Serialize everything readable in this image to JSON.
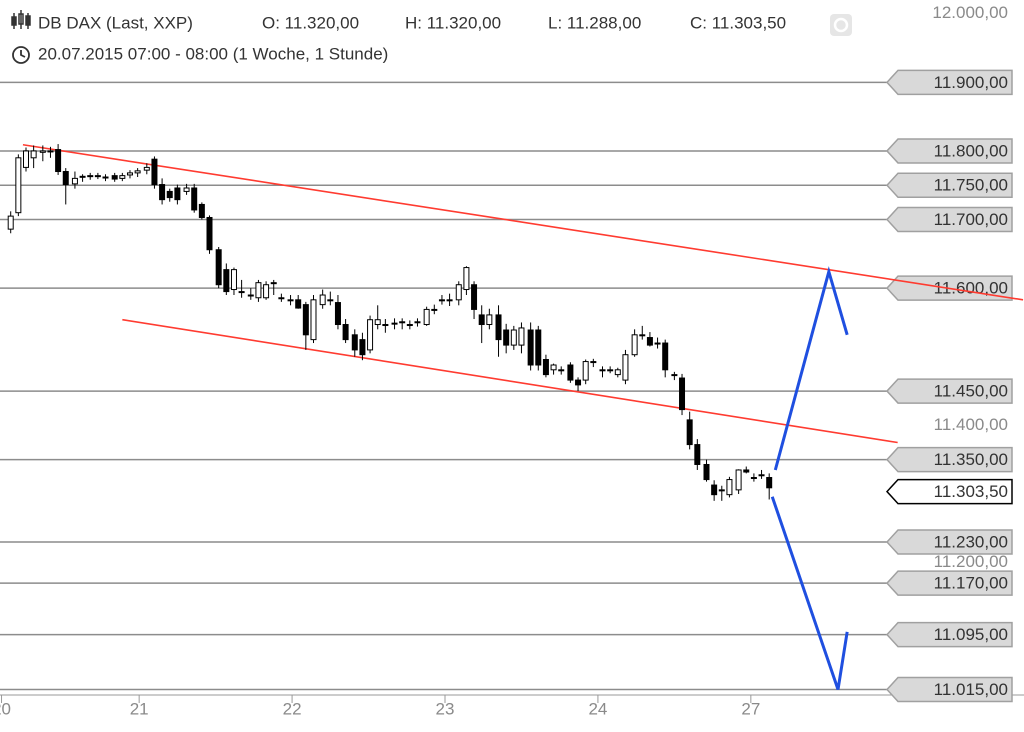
{
  "chart_data": {
    "type": "candlestick",
    "title": "DB DAX (Last, XXP)",
    "header": [
      "O: 11.320,00",
      "H: 11.320,00",
      "L: 11.288,00",
      "C: 11.303,50"
    ],
    "subtitle": "20.07.2015 07:00 - 08:00 (1 Woche, 1 Stunde)",
    "x": [
      0.16,
      0.21,
      0.26,
      0.31,
      0.37,
      0.42,
      0.47,
      0.52,
      0.58,
      0.63,
      0.68,
      0.73,
      0.78,
      0.84,
      0.89,
      0.94,
      0.99,
      1.05,
      1.1,
      1.15,
      1.2,
      1.25,
      1.31,
      1.36,
      1.41,
      1.46,
      1.52,
      1.57,
      1.62,
      1.67,
      1.73,
      1.78,
      1.83,
      1.88,
      1.93,
      1.99,
      2.04,
      2.09,
      2.14,
      2.2,
      2.25,
      2.3,
      2.35,
      2.41,
      2.46,
      2.51,
      2.56,
      2.61,
      2.67,
      2.72,
      2.77,
      2.82,
      2.88,
      2.93,
      2.98,
      3.03,
      3.09,
      3.14,
      3.19,
      3.24,
      3.29,
      3.35,
      3.4,
      3.45,
      3.5,
      3.56,
      3.61,
      3.66,
      3.71,
      3.76,
      3.82,
      3.87,
      3.92,
      3.97,
      4.03,
      4.08,
      4.13,
      4.18,
      4.24,
      4.29,
      4.34,
      4.39,
      4.44,
      4.5,
      4.55,
      4.6,
      4.65,
      4.71,
      4.76,
      4.81,
      4.86,
      4.92,
      4.97,
      5.02,
      5.07,
      5.12
    ],
    "open": [
      11686,
      11710,
      11776,
      11790,
      11798,
      11800,
      11802,
      11770,
      11752,
      11762,
      11763,
      11764,
      11762,
      11764,
      11760,
      11765,
      11768,
      11772,
      11788,
      11751,
      11741,
      11746,
      11741,
      11746,
      11722,
      11703,
      11656,
      11627,
      11598,
      11595,
      11590,
      11586,
      11586,
      11608,
      11586,
      11583,
      11583,
      11576,
      11525,
      11576,
      11583,
      11579,
      11547,
      11532,
      11525,
      11510,
      11547,
      11547,
      11548,
      11550,
      11547,
      11551,
      11547,
      11569,
      11583,
      11583,
      11583,
      11598,
      11605,
      11561,
      11547,
      11561,
      11539,
      11517,
      11517,
      11539,
      11539,
      11496,
      11481,
      11481,
      11488,
      11466,
      11466,
      11493,
      11481,
      11481,
      11474,
      11466,
      11503,
      11532,
      11528,
      11520,
      11520,
      11474,
      11469,
      11408,
      11372,
      11343,
      11313,
      11306,
      11299,
      11306,
      11335,
      11324,
      11328,
      11324
    ],
    "high": [
      11712,
      11795,
      11805,
      11808,
      11808,
      11806,
      11810,
      11775,
      11770,
      11766,
      11768,
      11768,
      11766,
      11768,
      11768,
      11772,
      11775,
      11782,
      11792,
      11760,
      11745,
      11751,
      11752,
      11752,
      11725,
      11706,
      11660,
      11636,
      11630,
      11612,
      11600,
      11612,
      11610,
      11612,
      11592,
      11590,
      11590,
      11580,
      11590,
      11598,
      11595,
      11590,
      11555,
      11540,
      11535,
      11560,
      11575,
      11555,
      11556,
      11556,
      11553,
      11556,
      11573,
      11576,
      11590,
      11592,
      11610,
      11632,
      11610,
      11575,
      11570,
      11575,
      11548,
      11545,
      11550,
      11550,
      11545,
      11503,
      11490,
      11486,
      11492,
      11470,
      11496,
      11497,
      11486,
      11486,
      11484,
      11510,
      11540,
      11545,
      11536,
      11528,
      11525,
      11478,
      11475,
      11420,
      11380,
      11350,
      11320,
      11312,
      11325,
      11336,
      11340,
      11330,
      11335,
      11330
    ],
    "low": [
      11680,
      11705,
      11770,
      11775,
      11785,
      11790,
      11765,
      11722,
      11745,
      11755,
      11758,
      11759,
      11756,
      11755,
      11756,
      11760,
      11762,
      11766,
      11745,
      11722,
      11726,
      11722,
      11736,
      11710,
      11700,
      11650,
      11600,
      11590,
      11590,
      11586,
      11583,
      11580,
      11583,
      11590,
      11580,
      11575,
      11570,
      11510,
      11520,
      11570,
      11575,
      11540,
      11520,
      11500,
      11495,
      11505,
      11540,
      11535,
      11540,
      11540,
      11540,
      11544,
      11545,
      11562,
      11576,
      11574,
      11575,
      11590,
      11555,
      11520,
      11540,
      11500,
      11505,
      11510,
      11505,
      11480,
      11480,
      11470,
      11474,
      11474,
      11462,
      11450,
      11460,
      11485,
      11470,
      11476,
      11470,
      11460,
      11500,
      11525,
      11515,
      11512,
      11470,
      11466,
      11415,
      11365,
      11335,
      11318,
      11290,
      11290,
      11295,
      11300,
      11330,
      11318,
      11322,
      11292
    ],
    "close": [
      11705,
      11790,
      11800,
      11800,
      11800,
      11799,
      11770,
      11751,
      11760,
      11763,
      11764,
      11764,
      11762,
      11759,
      11764,
      11768,
      11771,
      11776,
      11751,
      11729,
      11732,
      11729,
      11746,
      11714,
      11703,
      11656,
      11605,
      11595,
      11627,
      11595,
      11590,
      11608,
      11605,
      11608,
      11586,
      11583,
      11571,
      11532,
      11583,
      11590,
      11583,
      11547,
      11525,
      11510,
      11503,
      11554,
      11554,
      11547,
      11549,
      11551,
      11547,
      11551,
      11569,
      11569,
      11583,
      11583,
      11605,
      11630,
      11569,
      11547,
      11561,
      11525,
      11517,
      11539,
      11542,
      11488,
      11488,
      11474,
      11488,
      11481,
      11466,
      11459,
      11493,
      11493,
      11481,
      11481,
      11481,
      11503,
      11532,
      11532,
      11517,
      11520,
      11481,
      11474,
      11423,
      11372,
      11343,
      11321,
      11299,
      11306,
      11321,
      11335,
      11332,
      11324,
      11328,
      11309
    ],
    "up_color": "#ffffff",
    "down_color": "#000000",
    "xlim": [
      0.09,
      5.91
    ],
    "xticks": [
      {
        "value": 0.1,
        "label": "20"
      },
      {
        "value": 1,
        "label": "21"
      },
      {
        "value": 2,
        "label": "22"
      },
      {
        "value": 3,
        "label": "23"
      },
      {
        "value": 4,
        "label": "24"
      },
      {
        "value": 5,
        "label": "27"
      }
    ],
    "ylim": [
      11007,
      12020
    ],
    "yticks": [
      {
        "value": 12000,
        "label": "12.000,00"
      },
      {
        "value": 11400,
        "label": "11.400,00"
      },
      {
        "value": 11200,
        "label": "11.200,00"
      }
    ],
    "levels": [
      {
        "value": 11900,
        "label": "11.900,00"
      },
      {
        "value": 11800,
        "label": "11.800,00"
      },
      {
        "value": 11750,
        "label": "11.750,00"
      },
      {
        "value": 11700,
        "label": "11.700,00"
      },
      {
        "value": 11600,
        "label": "11.600,00"
      },
      {
        "value": 11450,
        "label": "11.450,00"
      },
      {
        "value": 11350,
        "label": "11.350,00"
      },
      {
        "value": 11230,
        "label": "11.230,00"
      },
      {
        "value": 11170,
        "label": "11.170,00"
      },
      {
        "value": 11095,
        "label": "11.095,00"
      },
      {
        "value": 11015,
        "label": "11.015,00"
      }
    ],
    "current": {
      "value": 11303.5,
      "label": "11.303,50"
    },
    "trendlines": [
      {
        "color": "#ff3b30",
        "x": [
          0.24,
          6.78
        ],
        "y": [
          11809,
          11583
        ]
      },
      {
        "color": "#ff3b30",
        "x": [
          0.89,
          5.96
        ],
        "y": [
          11554,
          11375
        ]
      }
    ],
    "projections": [
      {
        "color": "#1f4fe0",
        "x": [
          5.16,
          5.51,
          5.63
        ],
        "y": [
          11335,
          11624,
          11532
        ]
      },
      {
        "color": "#1f4fe0",
        "x": [
          5.14,
          5.57,
          5.63
        ],
        "y": [
          11296,
          11015,
          11099
        ]
      }
    ]
  }
}
